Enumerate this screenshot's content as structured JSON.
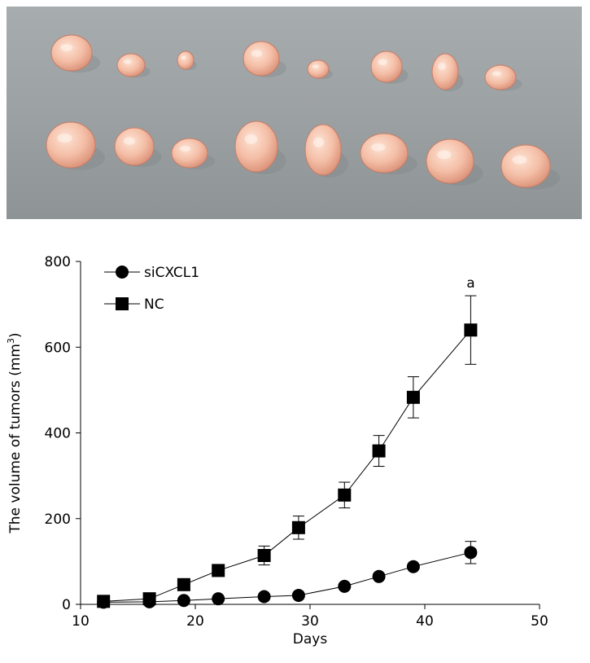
{
  "figure": {
    "photo": {
      "description_free": true,
      "background_color": "#9aa0a2",
      "tumor_color": "#f2b9a4",
      "rows": [
        {
          "count": 8
        },
        {
          "count": 8
        }
      ]
    }
  },
  "chart_data": {
    "type": "line",
    "title": "",
    "xlabel": "Days",
    "ylabel": "The volume of tumors (mm3)",
    "ylabel_parts": {
      "base": "The volume of tumors (mm",
      "sup": "3",
      "close": ")"
    },
    "xlim": [
      10,
      50
    ],
    "ylim": [
      0,
      800
    ],
    "xticks": [
      10,
      20,
      30,
      40,
      50
    ],
    "yticks": [
      0,
      200,
      400,
      600,
      800
    ],
    "grid": false,
    "legend_position": "top-left",
    "series": [
      {
        "name": "siCXCL1",
        "marker": "circle",
        "x": [
          12,
          16,
          19,
          22,
          26,
          29,
          33,
          36,
          39,
          44
        ],
        "y": [
          5,
          6,
          9,
          13,
          18,
          21,
          42,
          65,
          88,
          121
        ],
        "error": [
          0,
          0,
          0,
          0,
          0,
          0,
          0,
          0,
          0,
          26
        ]
      },
      {
        "name": "NC",
        "marker": "square",
        "x": [
          12,
          16,
          19,
          22,
          26,
          29,
          33,
          36,
          39,
          44
        ],
        "y": [
          7,
          13,
          46,
          79,
          114,
          179,
          255,
          358,
          483,
          640
        ],
        "error": [
          0,
          0,
          0,
          0,
          22,
          27,
          30,
          36,
          48,
          80
        ]
      }
    ],
    "annotations": [
      {
        "text": "a",
        "x": 44,
        "anchor": "above-error-bar",
        "series": "NC"
      }
    ]
  }
}
